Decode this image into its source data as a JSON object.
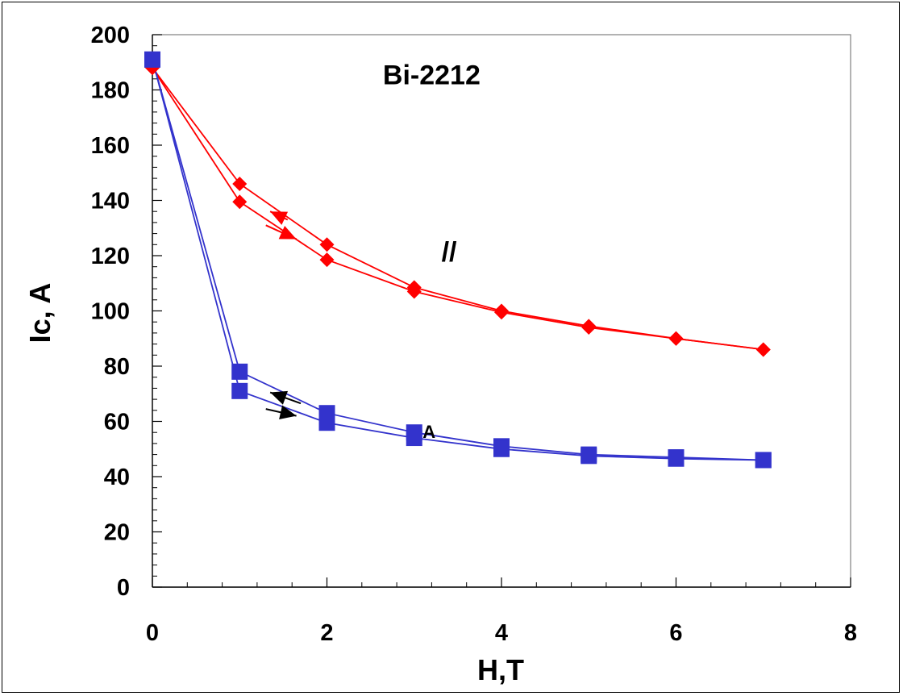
{
  "chart_data": {
    "type": "line",
    "title": "",
    "xlabel": "H,T",
    "ylabel": "Ic, A",
    "xlim": [
      0,
      8
    ],
    "ylim": [
      0,
      200
    ],
    "x_ticks": [
      0,
      2,
      4,
      6,
      8
    ],
    "y_ticks": [
      0,
      20,
      40,
      60,
      80,
      100,
      120,
      140,
      160,
      180,
      200
    ],
    "x_minor_step": 0.4,
    "y_minor_step": 4,
    "grid": false,
    "legend": "none",
    "annotations": [
      {
        "text": "Bi-2212",
        "x": 3.2,
        "y": 182
      },
      {
        "text": "//",
        "x": 3.4,
        "y": 118
      },
      {
        "text": "A",
        "x": 3.17,
        "y": 54
      }
    ],
    "series": [
      {
        "color": "#ff0000",
        "marker": "diamond",
        "x": [
          0,
          1,
          2,
          3,
          4,
          5,
          6,
          7
        ],
        "y": [
          188,
          146,
          124,
          108.5,
          100,
          94.5,
          90,
          86
        ]
      },
      {
        "color": "#ff0000",
        "marker": "diamond",
        "x": [
          0,
          1,
          2,
          3,
          4,
          5,
          6,
          7
        ],
        "y": [
          188,
          139.5,
          118.5,
          107,
          99.5,
          94,
          90,
          86
        ]
      },
      {
        "color": "#3333cc",
        "marker": "square",
        "x": [
          0,
          1,
          2,
          3,
          4,
          5,
          6,
          7
        ],
        "y": [
          191,
          78,
          63,
          56,
          51,
          48,
          47,
          46
        ]
      },
      {
        "color": "#3333cc",
        "marker": "square",
        "x": [
          0,
          1,
          2,
          3,
          4,
          5,
          6,
          7
        ],
        "y": [
          191,
          71,
          59.5,
          54,
          50,
          47.5,
          46.5,
          46
        ]
      }
    ],
    "arrows": [
      {
        "color": "#ff0000",
        "direction": "up-left",
        "from": [
          1.55,
          133
        ],
        "to": [
          1.35,
          136
        ]
      },
      {
        "color": "#ff0000",
        "direction": "down-right",
        "from": [
          1.3,
          131
        ],
        "to": [
          1.65,
          126
        ]
      },
      {
        "color": "#000000",
        "direction": "up-left",
        "from": [
          1.7,
          66.5
        ],
        "to": [
          1.35,
          70.5
        ]
      },
      {
        "color": "#000000",
        "direction": "down-right",
        "from": [
          1.3,
          64.5
        ],
        "to": [
          1.65,
          62
        ]
      }
    ]
  }
}
